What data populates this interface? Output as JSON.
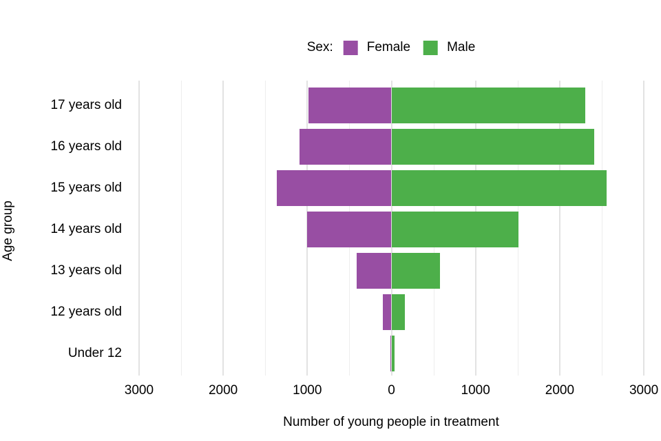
{
  "chart_data": {
    "type": "bar",
    "variant": "diverging-population-pyramid",
    "title": "",
    "legend": {
      "title": "Sex:",
      "entries": [
        {
          "label": "Female",
          "color": "#984EA3"
        },
        {
          "label": "Male",
          "color": "#4DAF4A"
        }
      ]
    },
    "categories": [
      "17 years old",
      "16 years old",
      "15 years old",
      "14 years old",
      "13 years old",
      "12 years old",
      "Under 12"
    ],
    "series": [
      {
        "name": "Female",
        "side": "left",
        "color": "#984EA3",
        "values": [
          985,
          1090,
          1360,
          1000,
          410,
          100,
          15
        ]
      },
      {
        "name": "Male",
        "side": "right",
        "color": "#4DAF4A",
        "values": [
          2300,
          2410,
          2560,
          1510,
          575,
          160,
          40
        ]
      }
    ],
    "xlabel": "Number of young people in treatment",
    "ylabel": "Age group",
    "xlim": [
      -3000,
      3000
    ],
    "x_ticks": [
      -3000,
      -2000,
      -1000,
      0,
      1000,
      2000,
      3000
    ],
    "x_tick_labels": [
      "3000",
      "2000",
      "1000",
      "0",
      "1000",
      "2000",
      "3000"
    ],
    "grid": {
      "show": true,
      "major_every": 1000,
      "minor_every": 500,
      "major_color": "#E2E2E2",
      "minor_color": "#EDEDED"
    },
    "background": "#FFFFFF",
    "text_color": "#000000"
  }
}
